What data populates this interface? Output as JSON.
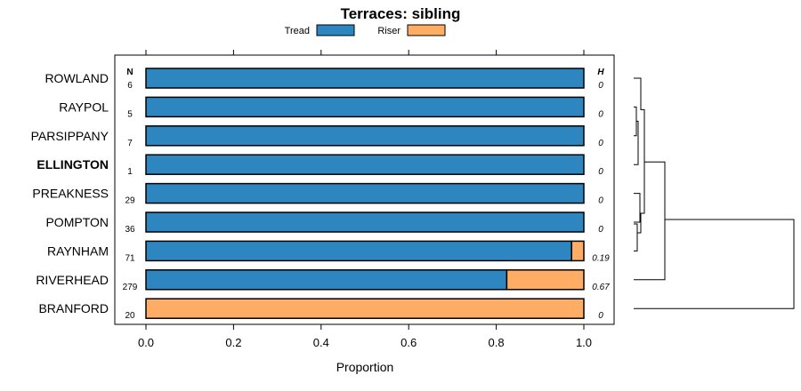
{
  "chart_data": {
    "type": "bar",
    "stacked": true,
    "orientation": "horizontal",
    "title": "Terraces: sibling",
    "xlabel": "Proportion",
    "xlim": [
      0,
      1
    ],
    "xticks": [
      "0.0",
      "0.2",
      "0.4",
      "0.6",
      "0.8",
      "1.0"
    ],
    "legend": [
      {
        "name": "Tread",
        "color": "#2E86C1"
      },
      {
        "name": "Riser",
        "color": "#FFAD65"
      }
    ],
    "n_header": "N",
    "h_header": "H",
    "categories": [
      "ROWLAND",
      "RAYPOL",
      "PARSIPPANY",
      "ELLINGTON",
      "PREAKNESS",
      "POMPTON",
      "RAYNHAM",
      "RIVERHEAD",
      "BRANFORD"
    ],
    "highlight": "ELLINGTON",
    "n": [
      "6",
      "5",
      "7",
      "1",
      "29",
      "36",
      "71",
      "279",
      "20"
    ],
    "h": [
      "0",
      "0",
      "0",
      "0",
      "0",
      "0",
      "0.19",
      "0.67",
      "0"
    ],
    "series": [
      {
        "name": "Tread",
        "values": [
          1.0,
          1.0,
          1.0,
          1.0,
          1.0,
          1.0,
          0.972,
          0.824,
          0.0
        ]
      },
      {
        "name": "Riser",
        "values": [
          0.0,
          0.0,
          0.0,
          0.0,
          0.0,
          0.0,
          0.028,
          0.176,
          1.0
        ]
      }
    ]
  }
}
